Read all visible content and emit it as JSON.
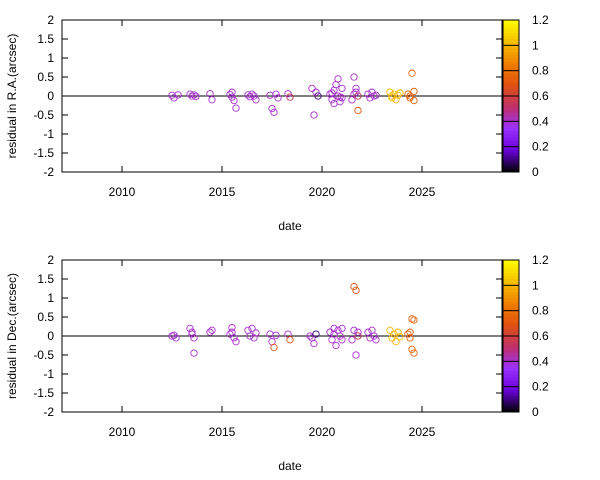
{
  "chart_data": [
    {
      "type": "scatter",
      "xlabel": "date",
      "ylabel": "residual in R.A.(arcsec)",
      "xlim": [
        2007,
        2029
      ],
      "ylim": [
        -2,
        2
      ],
      "x_ticks": [
        2010,
        2015,
        2020,
        2025
      ],
      "y_ticks": [
        -2,
        -1.5,
        -1,
        -0.5,
        0,
        0.5,
        1,
        1.5,
        2
      ],
      "y_tick_labels": [
        "-2",
        "-1.5",
        "-1",
        "-0.5",
        "0",
        "0.5",
        "1",
        "1.5",
        "2"
      ],
      "zero_line": true,
      "grid": false,
      "colorbar": {
        "range": [
          0,
          1.2
        ],
        "ticks": [
          0,
          0.2,
          0.4,
          0.6,
          0.8,
          1,
          1.2
        ],
        "tick_labels": [
          "0",
          "0.2",
          "0.4",
          "0.6",
          "0.8",
          "1",
          "1.2"
        ],
        "palette": [
          "#000000",
          "#6a00d8",
          "#9b30ff",
          "#c0306a",
          "#e05010",
          "#f08000",
          "#f6c000",
          "#ffff00"
        ]
      },
      "points": [
        [
          2012.5,
          0.02,
          0.4
        ],
        [
          2012.6,
          -0.05,
          0.4
        ],
        [
          2012.8,
          0.03,
          0.4
        ],
        [
          2013.4,
          0.05,
          0.4
        ],
        [
          2013.5,
          0.0,
          0.4
        ],
        [
          2013.6,
          0.03,
          0.4
        ],
        [
          2013.7,
          -0.01,
          0.4
        ],
        [
          2014.4,
          0.06,
          0.4
        ],
        [
          2014.5,
          -0.1,
          0.4
        ],
        [
          2015.4,
          0.04,
          0.4
        ],
        [
          2015.5,
          -0.03,
          0.4
        ],
        [
          2015.6,
          -0.12,
          0.4
        ],
        [
          2015.7,
          -0.32,
          0.4
        ],
        [
          2015.5,
          0.1,
          0.4
        ],
        [
          2016.3,
          0.03,
          0.4
        ],
        [
          2016.4,
          -0.02,
          0.4
        ],
        [
          2016.6,
          0.0,
          0.4
        ],
        [
          2016.7,
          -0.1,
          0.4
        ],
        [
          2016.5,
          0.05,
          0.4
        ],
        [
          2017.4,
          0.02,
          0.4
        ],
        [
          2017.5,
          -0.33,
          0.4
        ],
        [
          2017.6,
          -0.43,
          0.4
        ],
        [
          2017.7,
          0.05,
          0.4
        ],
        [
          2017.8,
          -0.05,
          0.4
        ],
        [
          2018.3,
          0.06,
          0.4
        ],
        [
          2018.4,
          -0.03,
          0.55
        ],
        [
          2019.5,
          0.2,
          0.4
        ],
        [
          2019.6,
          -0.5,
          0.4
        ],
        [
          2019.8,
          0.0,
          0.1
        ],
        [
          2019.7,
          0.1,
          0.4
        ],
        [
          2020.4,
          0.05,
          0.4
        ],
        [
          2020.5,
          -0.1,
          0.4
        ],
        [
          2020.6,
          0.15,
          0.4
        ],
        [
          2020.6,
          -0.2,
          0.4
        ],
        [
          2020.7,
          0.3,
          0.4
        ],
        [
          2020.8,
          0.0,
          0.4
        ],
        [
          2020.8,
          0.45,
          0.4
        ],
        [
          2020.9,
          -0.15,
          0.4
        ],
        [
          2021.0,
          0.2,
          0.4
        ],
        [
          2021.0,
          -0.05,
          0.4
        ],
        [
          2020.5,
          0.08,
          0.4
        ],
        [
          2020.9,
          -0.03,
          0.4
        ],
        [
          2021.6,
          0.5,
          0.4
        ],
        [
          2021.7,
          0.2,
          0.4
        ],
        [
          2021.8,
          -0.38,
          0.7
        ],
        [
          2021.6,
          0.05,
          0.4
        ],
        [
          2021.8,
          0.0,
          0.55
        ],
        [
          2021.5,
          -0.1,
          0.4
        ],
        [
          2021.7,
          0.1,
          0.4
        ],
        [
          2022.3,
          0.05,
          0.4
        ],
        [
          2022.4,
          -0.05,
          0.4
        ],
        [
          2022.5,
          0.1,
          0.4
        ],
        [
          2022.6,
          0.0,
          0.4
        ],
        [
          2022.7,
          0.02,
          0.4
        ],
        [
          2023.4,
          0.1,
          1.0
        ],
        [
          2023.5,
          -0.05,
          1.0
        ],
        [
          2023.6,
          0.05,
          1.0
        ],
        [
          2023.7,
          -0.1,
          1.0
        ],
        [
          2023.8,
          0.02,
          1.0
        ],
        [
          2023.9,
          0.08,
          1.0
        ],
        [
          2023.5,
          0.0,
          1.0
        ],
        [
          2024.3,
          0.05,
          0.75
        ],
        [
          2024.4,
          -0.05,
          0.75
        ],
        [
          2024.5,
          0.6,
          0.75
        ],
        [
          2024.6,
          0.12,
          0.75
        ],
        [
          2024.6,
          -0.12,
          0.75
        ],
        [
          2024.4,
          0.0,
          0.75
        ]
      ]
    },
    {
      "type": "scatter",
      "xlabel": "date",
      "ylabel": "residual in Dec.(arcsec)",
      "xlim": [
        2007,
        2029
      ],
      "ylim": [
        -2,
        2
      ],
      "x_ticks": [
        2010,
        2015,
        2020,
        2025
      ],
      "y_ticks": [
        -2,
        -1.5,
        -1,
        -0.5,
        0,
        0.5,
        1,
        1.5,
        2
      ],
      "y_tick_labels": [
        "-2",
        "-1.5",
        "-1",
        "-0.5",
        "0",
        "0.5",
        "1",
        "1.5",
        "2"
      ],
      "zero_line": true,
      "grid": false,
      "colorbar": {
        "range": [
          0,
          1.2
        ],
        "ticks": [
          0,
          0.2,
          0.4,
          0.6,
          0.8,
          1,
          1.2
        ],
        "tick_labels": [
          "0",
          "0.2",
          "0.4",
          "0.6",
          "0.8",
          "1",
          "1.2"
        ],
        "palette": [
          "#000000",
          "#6a00d8",
          "#9b30ff",
          "#c0306a",
          "#e05010",
          "#f08000",
          "#f6c000",
          "#ffff00"
        ]
      },
      "points": [
        [
          2012.5,
          0.0,
          0.4
        ],
        [
          2012.6,
          0.02,
          0.4
        ],
        [
          2012.7,
          -0.05,
          0.4
        ],
        [
          2013.4,
          0.2,
          0.4
        ],
        [
          2013.5,
          0.05,
          0.4
        ],
        [
          2013.6,
          -0.05,
          0.4
        ],
        [
          2013.6,
          -0.45,
          0.4
        ],
        [
          2013.5,
          0.1,
          0.4
        ],
        [
          2014.4,
          0.1,
          0.4
        ],
        [
          2014.5,
          0.15,
          0.4
        ],
        [
          2015.4,
          0.05,
          0.4
        ],
        [
          2015.5,
          0.22,
          0.4
        ],
        [
          2015.6,
          -0.05,
          0.4
        ],
        [
          2015.7,
          -0.15,
          0.4
        ],
        [
          2015.5,
          0.1,
          0.4
        ],
        [
          2016.3,
          0.15,
          0.4
        ],
        [
          2016.4,
          0.0,
          0.4
        ],
        [
          2016.5,
          0.2,
          0.4
        ],
        [
          2016.6,
          -0.05,
          0.4
        ],
        [
          2016.7,
          0.08,
          0.4
        ],
        [
          2017.4,
          0.05,
          0.4
        ],
        [
          2017.5,
          -0.15,
          0.4
        ],
        [
          2017.6,
          -0.3,
          0.7
        ],
        [
          2017.7,
          0.02,
          0.4
        ],
        [
          2018.3,
          0.05,
          0.4
        ],
        [
          2018.4,
          -0.1,
          0.7
        ],
        [
          2019.4,
          0.0,
          0.4
        ],
        [
          2019.5,
          -0.05,
          0.4
        ],
        [
          2019.6,
          -0.2,
          0.4
        ],
        [
          2019.7,
          0.05,
          0.1
        ],
        [
          2020.4,
          0.1,
          0.4
        ],
        [
          2020.5,
          -0.1,
          0.4
        ],
        [
          2020.6,
          0.2,
          0.4
        ],
        [
          2020.7,
          -0.25,
          0.4
        ],
        [
          2020.8,
          0.15,
          0.4
        ],
        [
          2020.9,
          0.0,
          0.4
        ],
        [
          2021.0,
          -0.1,
          0.4
        ],
        [
          2021.0,
          0.2,
          0.4
        ],
        [
          2020.6,
          0.05,
          0.4
        ],
        [
          2021.6,
          1.3,
          0.7
        ],
        [
          2021.7,
          1.2,
          0.7
        ],
        [
          2021.6,
          0.15,
          0.4
        ],
        [
          2021.7,
          -0.5,
          0.4
        ],
        [
          2021.8,
          0.0,
          0.55
        ],
        [
          2021.5,
          -0.1,
          0.4
        ],
        [
          2021.8,
          0.1,
          0.4
        ],
        [
          2022.3,
          0.1,
          0.4
        ],
        [
          2022.4,
          -0.05,
          0.4
        ],
        [
          2022.5,
          0.15,
          0.4
        ],
        [
          2022.6,
          0.0,
          0.4
        ],
        [
          2022.7,
          -0.1,
          0.4
        ],
        [
          2023.4,
          0.15,
          1.0
        ],
        [
          2023.5,
          -0.05,
          1.0
        ],
        [
          2023.6,
          0.05,
          1.0
        ],
        [
          2023.7,
          -0.15,
          1.0
        ],
        [
          2023.8,
          0.1,
          1.0
        ],
        [
          2023.9,
          -0.02,
          1.0
        ],
        [
          2024.3,
          0.05,
          0.75
        ],
        [
          2024.4,
          -0.05,
          0.75
        ],
        [
          2024.5,
          0.45,
          0.75
        ],
        [
          2024.6,
          0.42,
          0.75
        ],
        [
          2024.5,
          -0.35,
          0.75
        ],
        [
          2024.6,
          -0.45,
          0.75
        ],
        [
          2024.4,
          0.1,
          0.75
        ]
      ]
    }
  ]
}
